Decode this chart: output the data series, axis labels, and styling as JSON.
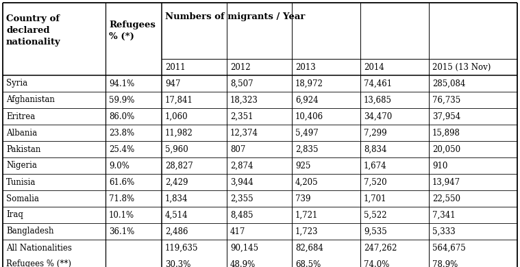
{
  "rows": [
    [
      "Syria",
      "94.1%",
      "947",
      "8,507",
      "18,972",
      "74,461",
      "285,084"
    ],
    [
      "Afghanistan",
      "59.9%",
      "17,841",
      "18,323",
      "6,924",
      "13,685",
      "76,735"
    ],
    [
      "Eritrea",
      "86.0%",
      "1,060",
      "2,351",
      "10,406",
      "34,470",
      "37,954"
    ],
    [
      "Albania",
      "23.8%",
      "11,982",
      "12,374",
      "5,497",
      "7,299",
      "15,898"
    ],
    [
      "Pakistan",
      "25.4%",
      "5,960",
      "807",
      "2,835",
      "8,834",
      "20,050"
    ],
    [
      "Nigeria",
      "9.0%",
      "28,827",
      "2,874",
      "925",
      "1,674",
      "910"
    ],
    [
      "Tunisia",
      "61.6%",
      "2,429",
      "3,944",
      "4,205",
      "7,520",
      "13,947"
    ],
    [
      "Somalia",
      "71.8%",
      "1,834",
      "2,355",
      "739",
      "1,701",
      "22,550"
    ],
    [
      "Iraq",
      "10.1%",
      "4,514",
      "8,485",
      "1,721",
      "5,522",
      "7,341"
    ],
    [
      "Bangladesh",
      "36.1%",
      "2,486",
      "417",
      "1,723",
      "9,535",
      "5,333"
    ]
  ],
  "footer_rows": [
    [
      "All Nationalities",
      "",
      "119,635",
      "90,145",
      "82,684",
      "247,262",
      "564,675"
    ],
    [
      "Refugees % (**)",
      "",
      "30.3%",
      "48.9%",
      "68.5%",
      "74.0%",
      "78.9%"
    ]
  ],
  "years": [
    "2011",
    "2012",
    "2013",
    "2014",
    "2015 (13 Nov)"
  ],
  "col_header0": "Country of\ndeclared\nnationality",
  "col_header1": "Refugees\n% (*)",
  "col_header2": "Numbers of migrants / Year",
  "bg_color": "#ffffff",
  "text_color": "#000000",
  "line_color": "#000000",
  "font_size": 8.5,
  "header_font_size": 9.5
}
